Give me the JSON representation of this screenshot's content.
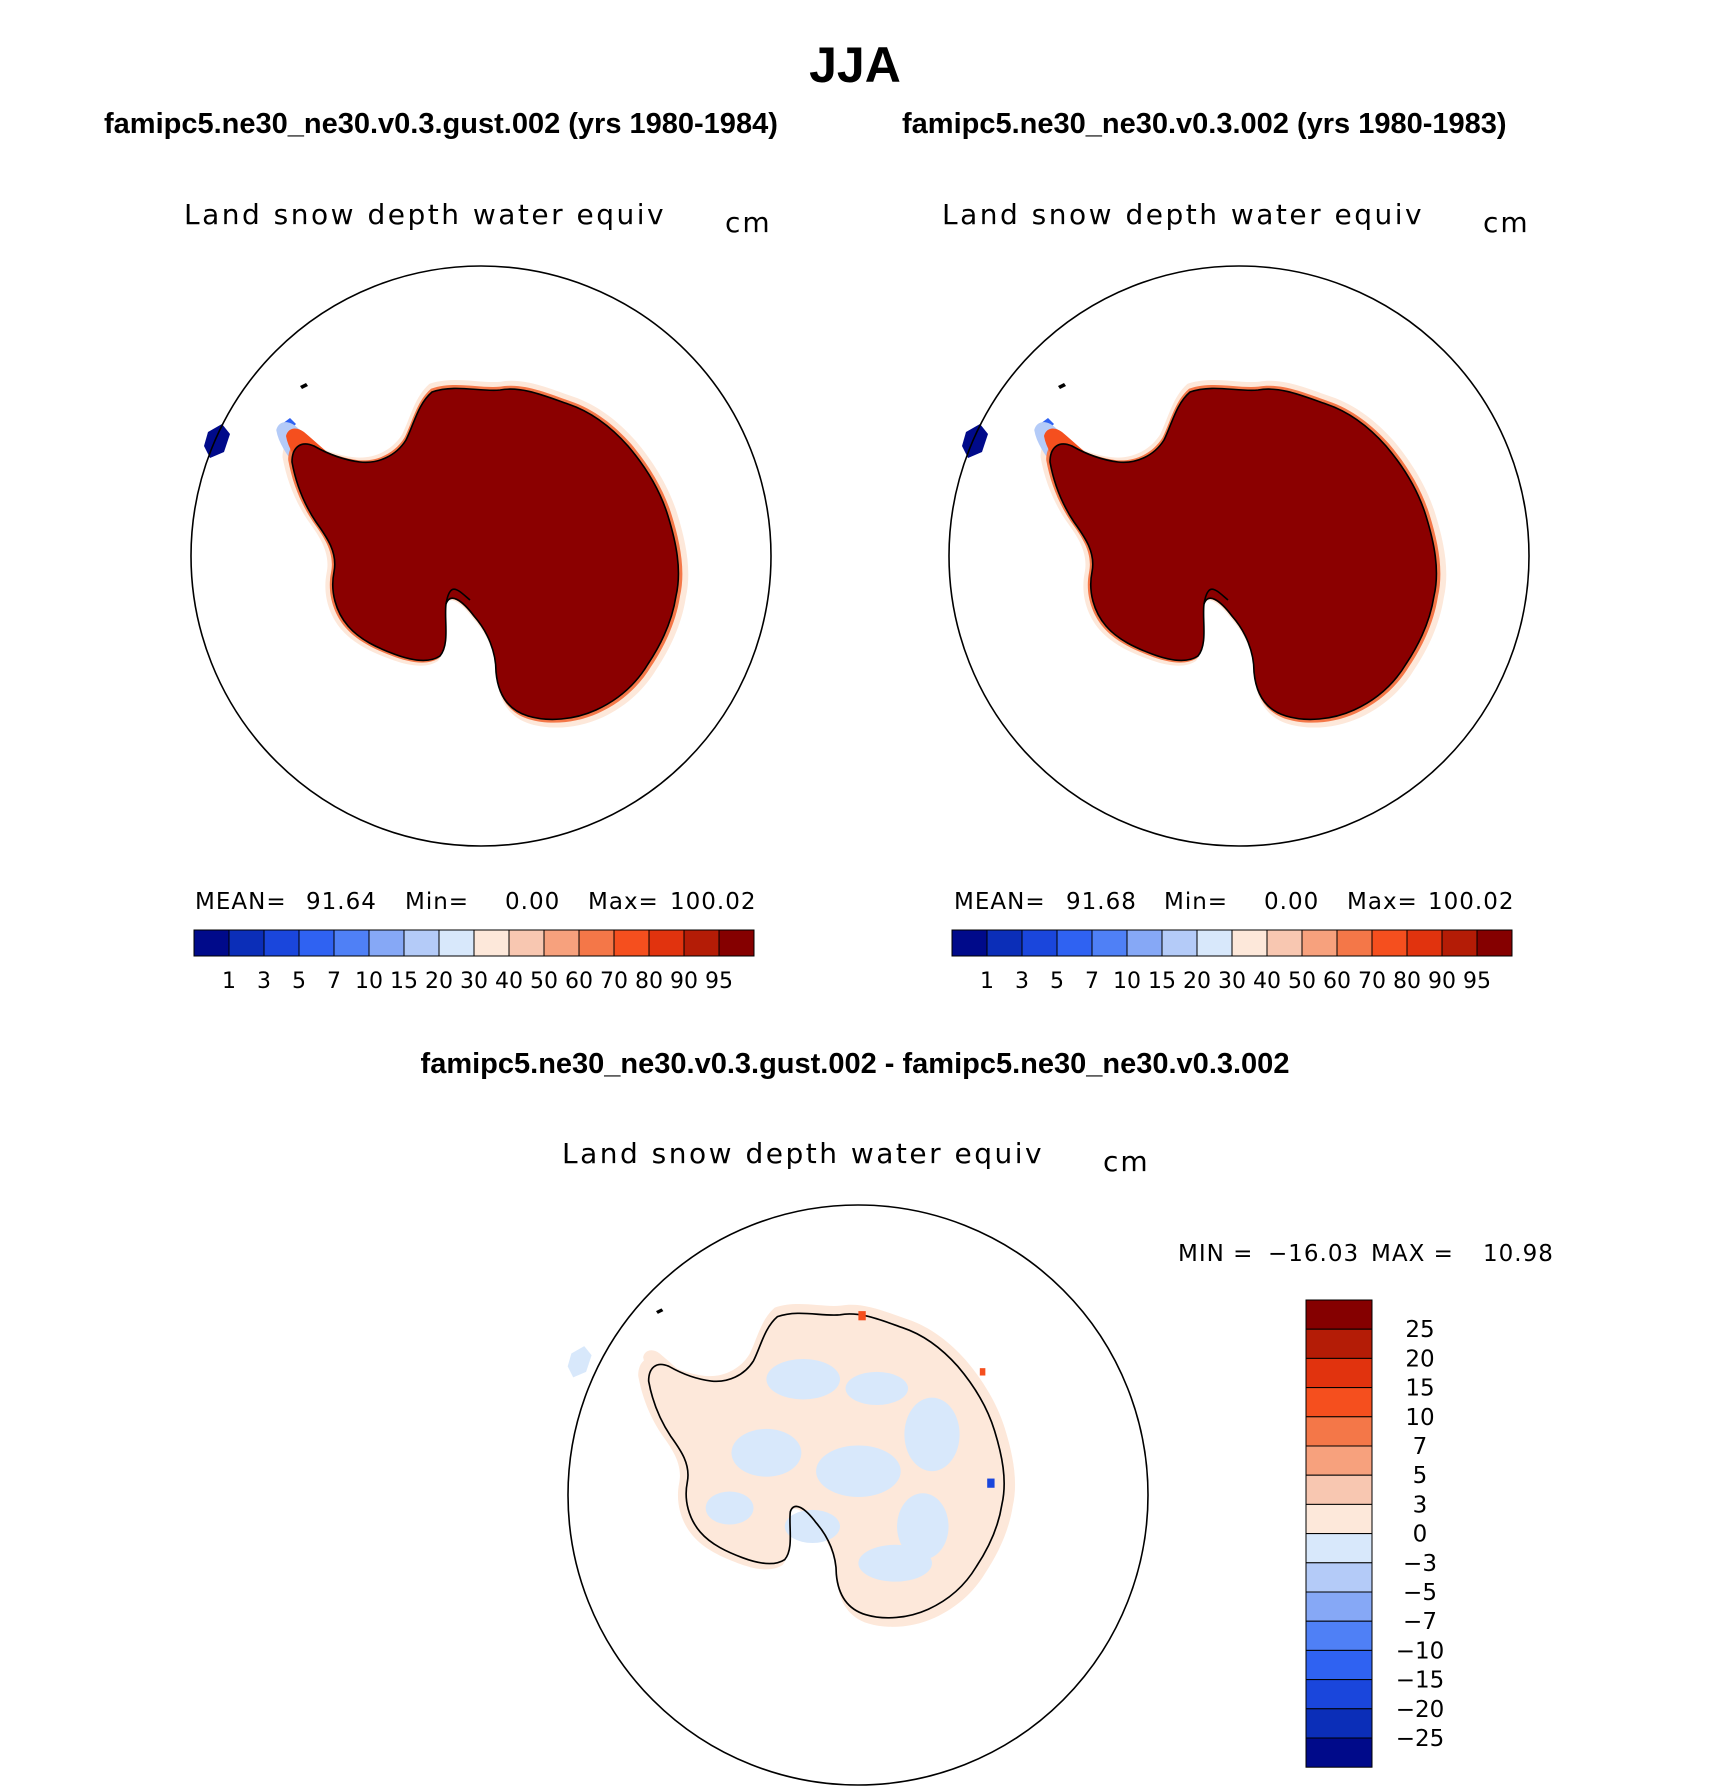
{
  "title": "JJA",
  "colors": {
    "abs_scale": [
      "#000a8a",
      "#0b2eb8",
      "#1a46dc",
      "#2f62f2",
      "#4f80f6",
      "#86a8f6",
      "#b4cbf8",
      "#d8e8fb",
      "#fde8da",
      "#f8c7b1",
      "#f7a17d",
      "#f47748",
      "#f54f1e",
      "#e1330e",
      "#b41c06",
      "#850000"
    ],
    "diff_scale": [
      "#850000",
      "#b41c06",
      "#e1330e",
      "#f54f1e",
      "#f47748",
      "#f7a17d",
      "#f8c7b1",
      "#fde8da",
      "#d8e8fb",
      "#b4cbf8",
      "#86a8f6",
      "#4f80f6",
      "#2f62f2",
      "#1a46dc",
      "#0b2eb8",
      "#000a8a"
    ],
    "land_fill": "#8b0000",
    "diff_warm": "#fde8da",
    "diff_cool": "#d8e8fb"
  },
  "panels": [
    {
      "case": "famipc5.ne30_ne30.v0.3.gust.002 (yrs 1980-1984)",
      "variable": "Land snow depth water equiv",
      "units": "cm",
      "mean_label": "MEAN=",
      "mean": "91.64",
      "min_label": "Min=",
      "min": "0.00",
      "max_label": "Max=",
      "max": "100.02",
      "levels": [
        "1",
        "3",
        "5",
        "7",
        "10",
        "15",
        "20",
        "30",
        "40",
        "50",
        "60",
        "70",
        "80",
        "90",
        "95"
      ]
    },
    {
      "case": "famipc5.ne30_ne30.v0.3.002 (yrs 1980-1983)",
      "variable": "Land snow depth water equiv",
      "units": "cm",
      "mean_label": "MEAN=",
      "mean": "91.68",
      "min_label": "Min=",
      "min": "0.00",
      "max_label": "Max=",
      "max": "100.02",
      "levels": [
        "1",
        "3",
        "5",
        "7",
        "10",
        "15",
        "20",
        "30",
        "40",
        "50",
        "60",
        "70",
        "80",
        "90",
        "95"
      ]
    }
  ],
  "difference": {
    "title": "famipc5.ne30_ne30.v0.3.gust.002 - famipc5.ne30_ne30.v0.3.002",
    "variable": "Land snow depth water equiv",
    "units": "cm",
    "min_label": "MIN =",
    "min": "−16.03",
    "max_label": "MAX =",
    "max": "10.98",
    "levels": [
      "25",
      "20",
      "15",
      "10",
      "7",
      "5",
      "3",
      "0",
      "−3",
      "−5",
      "−7",
      "−10",
      "−15",
      "−20",
      "−25"
    ]
  }
}
